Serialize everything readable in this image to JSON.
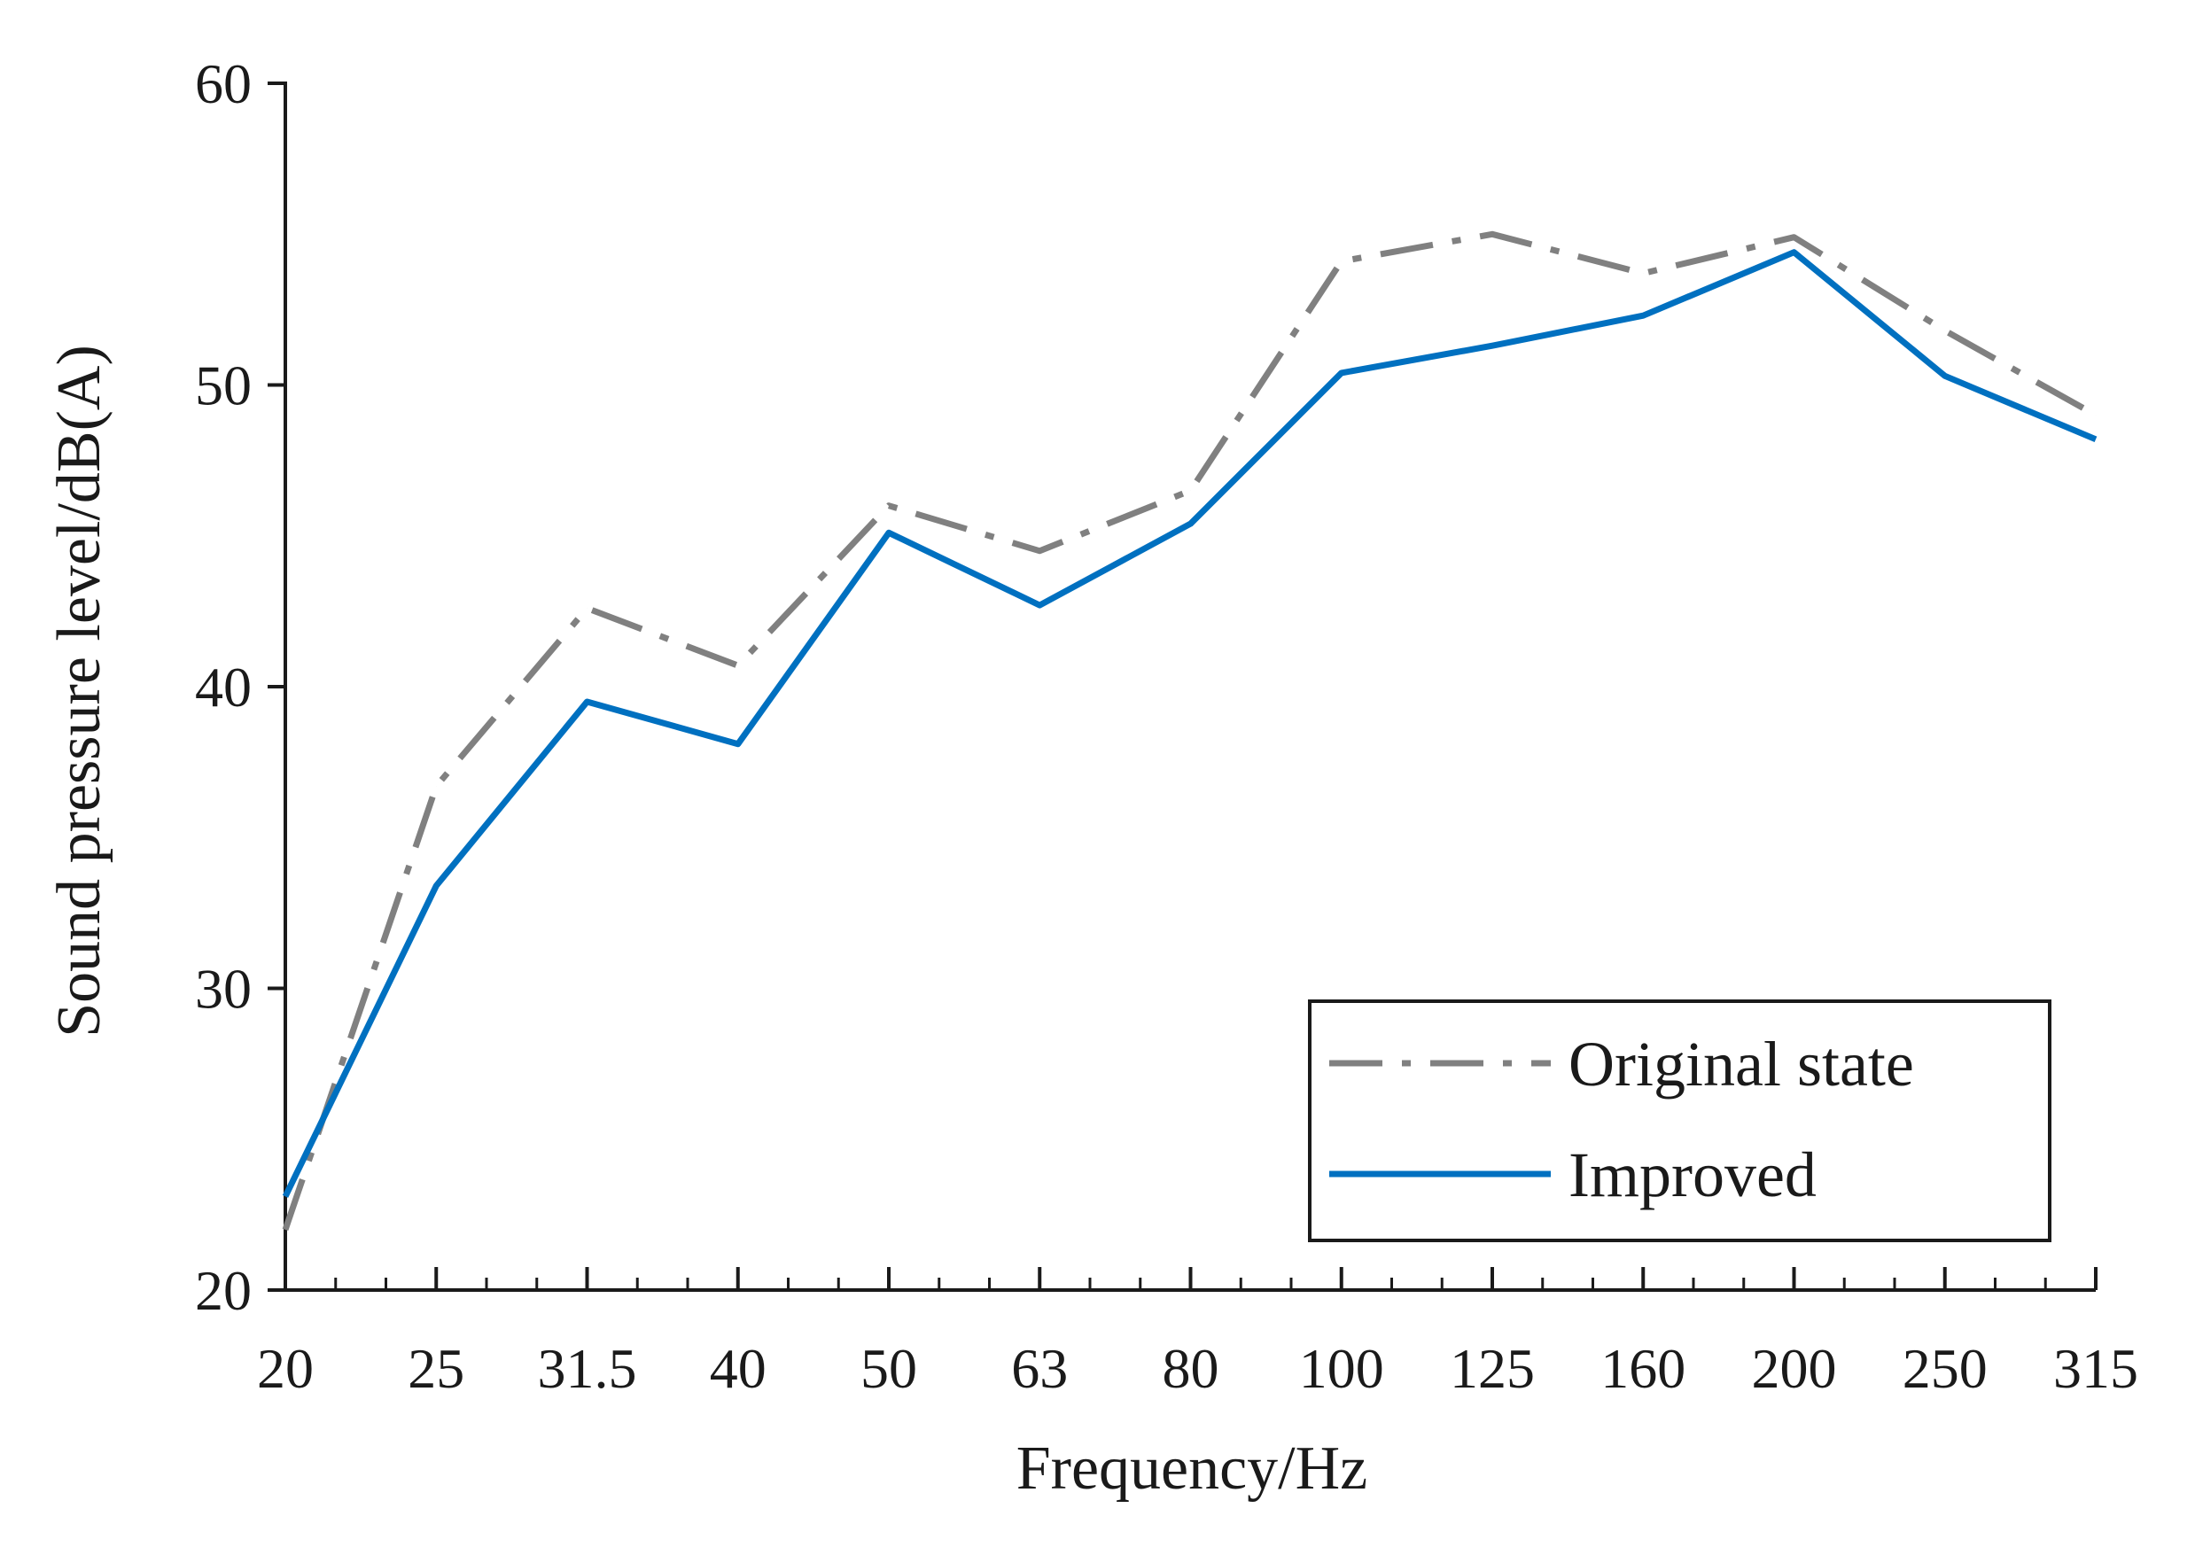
{
  "chart_data": {
    "type": "line",
    "xlabel": "Frequency/Hz",
    "ylabel": "Sound pressure level/dB(A)",
    "categories": [
      "20",
      "25",
      "31.5",
      "40",
      "50",
      "63",
      "80",
      "100",
      "125",
      "160",
      "200",
      "250",
      "315"
    ],
    "ylim": [
      20,
      60
    ],
    "yticks": [
      20,
      30,
      40,
      50,
      60
    ],
    "grid": false,
    "legend_position": "bottom-right",
    "series": [
      {
        "name": "Original state",
        "style": "dash-dot",
        "color": "#808080",
        "values": [
          22.0,
          36.7,
          42.6,
          40.7,
          46.0,
          44.5,
          46.5,
          54.1,
          55.0,
          53.7,
          54.9,
          51.8,
          49.0
        ]
      },
      {
        "name": "Improved",
        "style": "solid",
        "color": "#0070C0",
        "values": [
          23.1,
          33.4,
          39.5,
          38.1,
          45.1,
          42.7,
          45.4,
          50.4,
          51.3,
          52.3,
          54.4,
          50.3,
          48.2
        ]
      }
    ]
  }
}
